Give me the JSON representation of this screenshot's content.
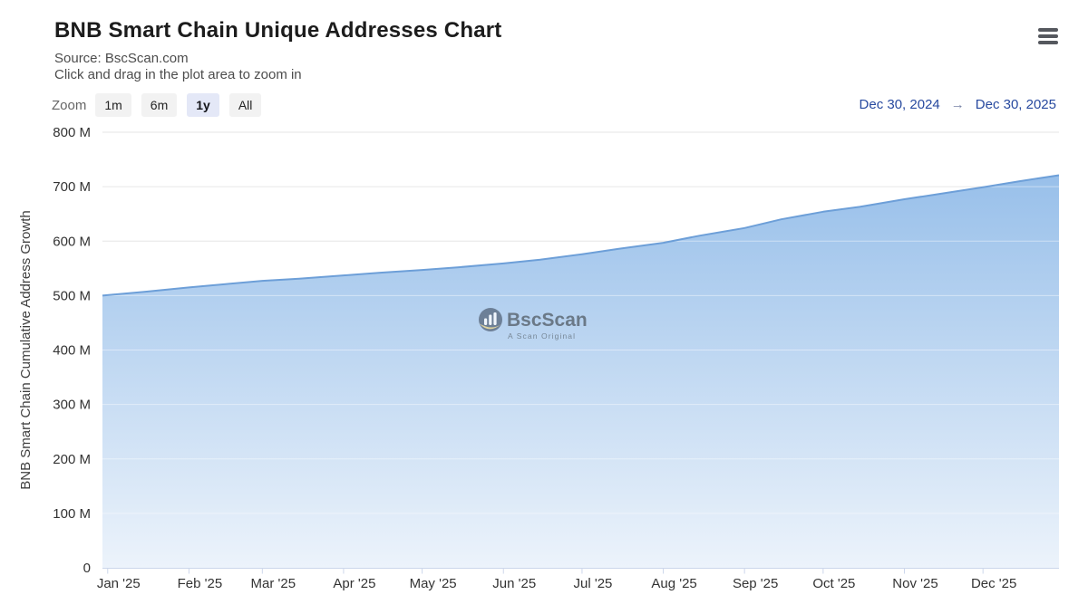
{
  "header": {
    "title": "BNB Smart Chain Unique Addresses Chart",
    "source_line": "Source: BscScan.com",
    "hint_line": "Click and drag in the plot area to zoom in"
  },
  "toolbar": {
    "zoom_label": "Zoom",
    "buttons": [
      {
        "label": "1m",
        "selected": false
      },
      {
        "label": "6m",
        "selected": false
      },
      {
        "label": "1y",
        "selected": true
      },
      {
        "label": "All",
        "selected": false
      }
    ],
    "range": {
      "from": "Dec 30, 2024",
      "arrow": "→",
      "to": "Dec 30, 2025"
    }
  },
  "watermark": {
    "brand": "BscScan",
    "tagline": "A Scan Original"
  },
  "colors": {
    "line": "#6d9fd8",
    "area_top": "#8fbae8",
    "area_bottom": "#ecf3fb",
    "gridline": "#e6e6e6",
    "gridline_over_area": "rgba(255,255,255,0.45)",
    "axis_line": "#ccd6eb",
    "axis_label": "#333333",
    "accent_date": "#27499f"
  },
  "chart_data": {
    "type": "area",
    "title": "BNB Smart Chain Unique Addresses Chart",
    "subtitle": "Source: BscScan.com",
    "xlabel": "",
    "ylabel": "BNB Smart Chain Cumulative Address Growth",
    "y_unit": "M (millions of addresses)",
    "ylim_m": [
      0,
      800
    ],
    "grid": true,
    "legend": "none",
    "x_range": [
      "2024-12-30",
      "2025-12-30"
    ],
    "y_ticks": [
      {
        "value_m": 0,
        "label": "0"
      },
      {
        "value_m": 100,
        "label": "100 M"
      },
      {
        "value_m": 200,
        "label": "200 M"
      },
      {
        "value_m": 300,
        "label": "300 M"
      },
      {
        "value_m": 400,
        "label": "400 M"
      },
      {
        "value_m": 500,
        "label": "500 M"
      },
      {
        "value_m": 600,
        "label": "600 M"
      },
      {
        "value_m": 700,
        "label": "700 M"
      },
      {
        "value_m": 800,
        "label": "800 M"
      }
    ],
    "x_ticks": [
      {
        "date": "2025-01-01",
        "label": "Jan '25"
      },
      {
        "date": "2025-02-01",
        "label": "Feb '25"
      },
      {
        "date": "2025-03-01",
        "label": "Mar '25"
      },
      {
        "date": "2025-04-01",
        "label": "Apr '25"
      },
      {
        "date": "2025-05-01",
        "label": "May '25"
      },
      {
        "date": "2025-06-01",
        "label": "Jun '25"
      },
      {
        "date": "2025-07-01",
        "label": "Jul '25"
      },
      {
        "date": "2025-08-01",
        "label": "Aug '25"
      },
      {
        "date": "2025-09-01",
        "label": "Sep '25"
      },
      {
        "date": "2025-10-01",
        "label": "Oct '25"
      },
      {
        "date": "2025-11-01",
        "label": "Nov '25"
      },
      {
        "date": "2025-12-01",
        "label": "Dec '25"
      }
    ],
    "series": [
      {
        "name": "BNB Smart Chain Cumulative Address Growth",
        "points": [
          {
            "date": "2024-12-30",
            "value_m": 500
          },
          {
            "date": "2025-01-15",
            "value_m": 507
          },
          {
            "date": "2025-02-01",
            "value_m": 515
          },
          {
            "date": "2025-02-15",
            "value_m": 521
          },
          {
            "date": "2025-03-01",
            "value_m": 527
          },
          {
            "date": "2025-03-15",
            "value_m": 531
          },
          {
            "date": "2025-04-01",
            "value_m": 537
          },
          {
            "date": "2025-04-15",
            "value_m": 542
          },
          {
            "date": "2025-05-01",
            "value_m": 547
          },
          {
            "date": "2025-05-15",
            "value_m": 552
          },
          {
            "date": "2025-06-01",
            "value_m": 559
          },
          {
            "date": "2025-06-15",
            "value_m": 566
          },
          {
            "date": "2025-07-01",
            "value_m": 576
          },
          {
            "date": "2025-07-15",
            "value_m": 586
          },
          {
            "date": "2025-08-01",
            "value_m": 597
          },
          {
            "date": "2025-08-15",
            "value_m": 610
          },
          {
            "date": "2025-09-01",
            "value_m": 624
          },
          {
            "date": "2025-09-15",
            "value_m": 640
          },
          {
            "date": "2025-10-01",
            "value_m": 654
          },
          {
            "date": "2025-10-15",
            "value_m": 663
          },
          {
            "date": "2025-11-01",
            "value_m": 677
          },
          {
            "date": "2025-11-15",
            "value_m": 687
          },
          {
            "date": "2025-12-01",
            "value_m": 699
          },
          {
            "date": "2025-12-15",
            "value_m": 710
          },
          {
            "date": "2025-12-30",
            "value_m": 721
          }
        ]
      }
    ]
  }
}
